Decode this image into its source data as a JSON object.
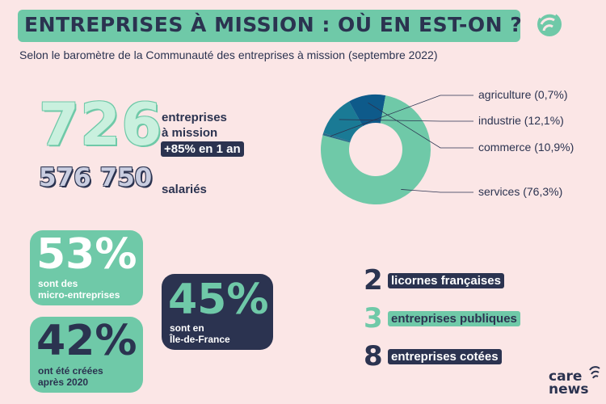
{
  "header": {
    "title": "ENTREPRISES À MISSION : OÙ EN EST-ON ?",
    "subtitle": "Selon le baromètre de la Communauté des entreprises à mission (septembre 2022)"
  },
  "kpis": {
    "companies_value": "726",
    "companies_label_1": "entreprises",
    "companies_label_2": "à mission",
    "growth": "+85% en 1 an",
    "employees_value": "576 750",
    "employees_label": "salariés"
  },
  "cards": {
    "micro": {
      "pct": "53%",
      "line1": "sont des",
      "line2": "micro-entreprises"
    },
    "after2020": {
      "pct": "42%",
      "line1": "ont été créées",
      "line2": "après 2020"
    },
    "idf": {
      "pct": "45%",
      "line1": "sont en",
      "line2": "Île-de-France"
    }
  },
  "stats": [
    {
      "num": "2",
      "label": "licornes françaises"
    },
    {
      "num": "3",
      "label": "entreprises publiques"
    },
    {
      "num": "8",
      "label": "entreprises cotées"
    }
  ],
  "colors": {
    "navy": "#2b3350",
    "green": "#6fc9a8",
    "teal_dark": "#1a7a95",
    "blue": "#0e5a8a",
    "background": "#fbe6e6"
  },
  "chart_data": {
    "type": "pie",
    "variant": "donut",
    "categories": [
      "agriculture",
      "industrie",
      "commerce",
      "services"
    ],
    "values": [
      0.7,
      12.1,
      10.9,
      76.3
    ],
    "unit": "%",
    "labels": [
      "agriculture (0,7%)",
      "industrie (12,1%)",
      "commerce (10,9%)",
      "services (76,3%)"
    ],
    "colors": [
      "#2b6b8a",
      "#1a7a95",
      "#0e5a8a",
      "#6fc9a8"
    ],
    "legend": "right"
  },
  "brand": {
    "line1": "care",
    "line2": "news"
  }
}
